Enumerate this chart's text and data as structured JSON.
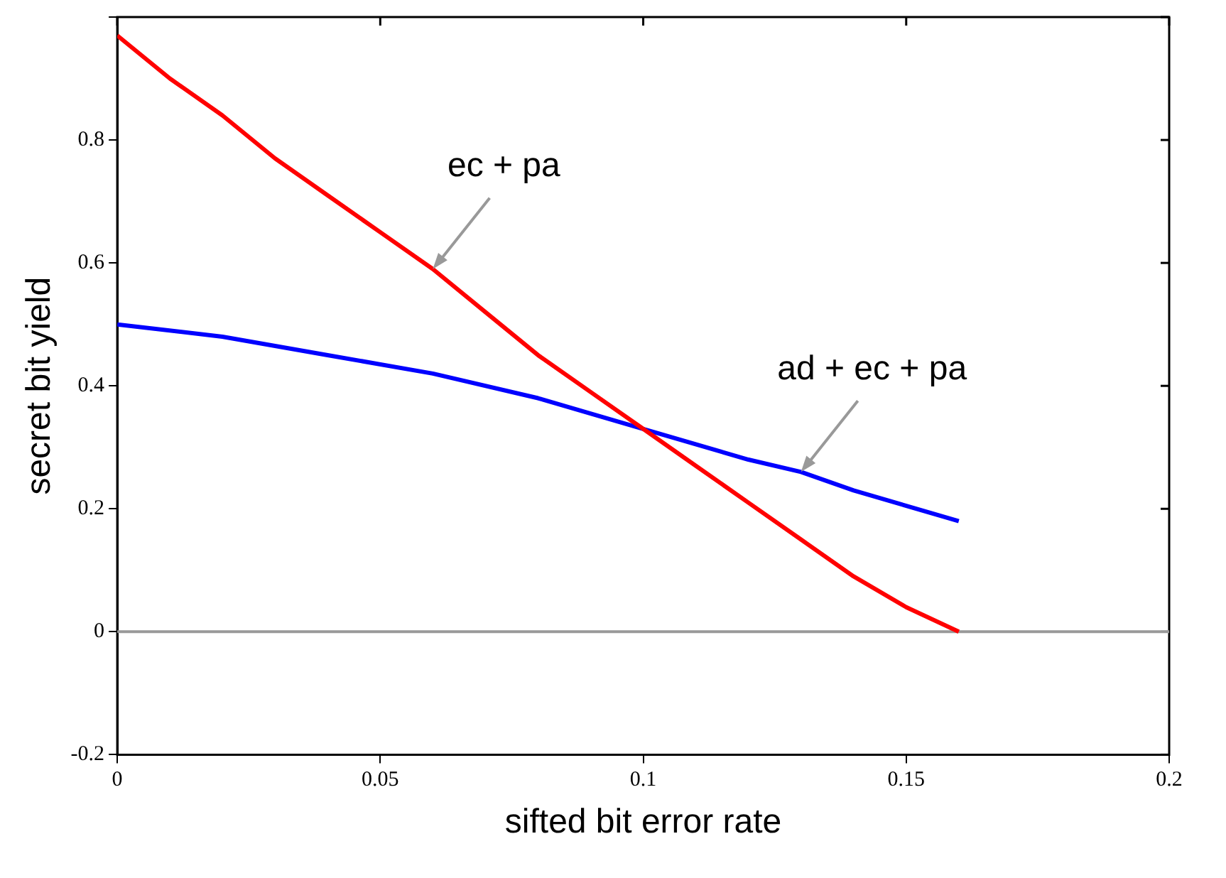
{
  "chart_data": {
    "type": "line",
    "xlabel": "sifted bit error rate",
    "ylabel": "secret bit yield",
    "xlim": [
      0,
      0.2
    ],
    "xticks": [
      0,
      0.05,
      0.1,
      0.15,
      0.2
    ],
    "ylim": [
      -0.2,
      1
    ],
    "yticks": [
      -0.2,
      0,
      0.2,
      0.4,
      0.6,
      0.8,
      {
        "value": 1,
        "label": null
      }
    ],
    "grid": false,
    "legend": false,
    "marker": "none",
    "line_style": "solid",
    "series": [
      {
        "color": "#ff0000",
        "x": [
          0,
          0.01,
          0.02,
          0.03,
          0.04,
          0.05,
          0.06,
          0.07,
          0.08,
          0.09,
          0.1,
          0.11,
          0.12,
          0.13,
          0.14,
          0.15,
          0.16
        ],
        "values": [
          0.97,
          0.9,
          0.84,
          0.77,
          0.71,
          0.65,
          0.59,
          0.52,
          0.45,
          0.39,
          0.33,
          0.27,
          0.21,
          0.15,
          0.09,
          0.04,
          0
        ]
      },
      {
        "color": "#0000ff",
        "x": [
          0,
          0.02,
          0.04,
          0.06,
          0.08,
          0.1,
          0.12,
          0.13,
          0.14,
          0.16
        ],
        "values": [
          0.5,
          0.48,
          0.45,
          0.42,
          0.38,
          0.33,
          0.28,
          0.26,
          0.23,
          0.18
        ]
      }
    ],
    "ref_lines": [
      {
        "axis": "y",
        "value": 0,
        "color": "#999999"
      }
    ],
    "annotations": [
      {
        "text": "ec + pa",
        "x": 0.06,
        "y": 0.59
      },
      {
        "text": "ad + ec + pa",
        "x": 0.13,
        "y": 0.26
      }
    ]
  }
}
